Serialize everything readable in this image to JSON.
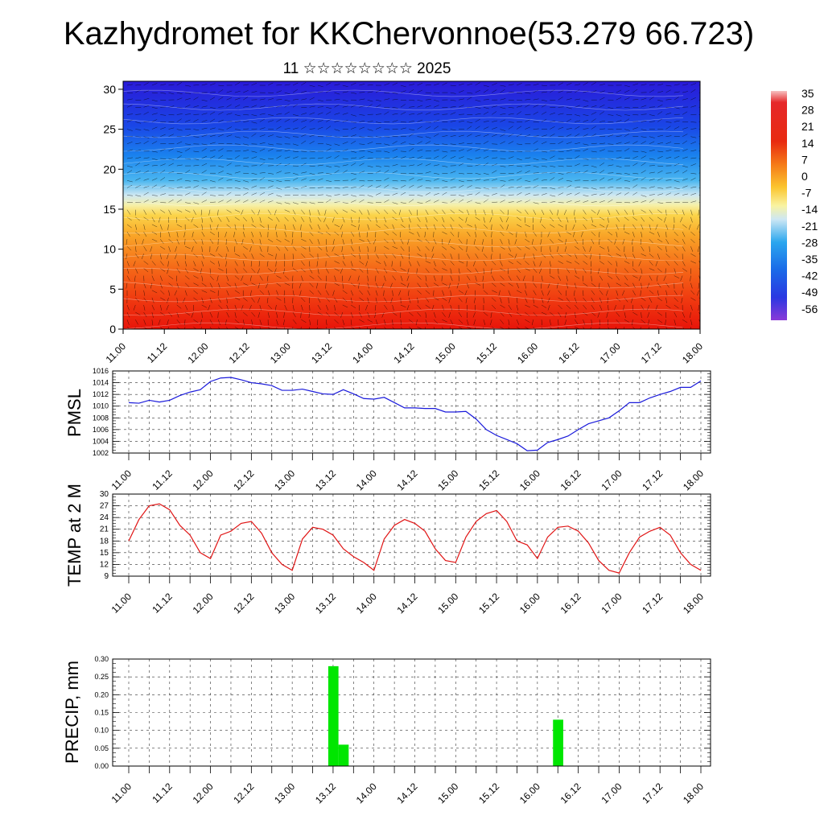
{
  "header": {
    "title": "Kazhydromet for KKChervonnoe(53.279 66.723)",
    "subtitle": "11 ☆☆☆☆☆☆☆☆ 2025"
  },
  "time_ticks": [
    "11.00",
    "11.12",
    "12.00",
    "12.12",
    "13.00",
    "13.12",
    "14.00",
    "14.12",
    "15.00",
    "15.12",
    "16.00",
    "16.12",
    "17.00",
    "17.12",
    "18.00"
  ],
  "colors": {
    "pmsl_line": "#1a1adb",
    "temp_line": "#e01414",
    "precip_bar": "#00e600",
    "grid": "#333333"
  },
  "chart_data": [
    {
      "type": "heatmap",
      "name": "cross-section",
      "ylabel": "",
      "ylim": [
        0,
        31
      ],
      "yticks": [
        0,
        5,
        10,
        15,
        20,
        25,
        30
      ],
      "colorbar": {
        "labels": [
          "35",
          "28",
          "21",
          "14",
          "7",
          "0",
          "-7",
          "-14",
          "-21",
          "-28",
          "-35",
          "-42",
          "-49",
          "-56"
        ]
      },
      "description_levels": {
        "surface_warm": 30,
        "freezing_level_km": 16,
        "top_cold": -56
      }
    },
    {
      "type": "line",
      "name": "pmsl",
      "ylabel": "PMSL",
      "ylim": [
        1002,
        1016
      ],
      "yticks": [
        1002,
        1004,
        1006,
        1008,
        1010,
        1012,
        1014,
        1016
      ],
      "x": [
        0,
        3,
        6,
        9,
        12,
        15,
        18,
        21,
        24,
        27,
        30,
        33,
        36,
        39,
        42,
        45,
        48,
        51,
        54,
        57,
        60,
        63,
        66,
        69,
        72,
        75,
        78,
        81,
        84,
        87,
        90,
        93,
        96,
        99,
        102,
        105,
        108,
        111,
        114,
        117,
        120,
        123,
        126,
        129,
        132,
        135,
        138,
        141,
        144,
        147,
        150,
        153,
        156,
        159,
        162,
        165,
        168
      ],
      "values": [
        1010.6,
        1010.5,
        1011.0,
        1010.7,
        1011.0,
        1011.8,
        1012.4,
        1012.8,
        1014.2,
        1014.8,
        1014.9,
        1014.5,
        1014.0,
        1013.8,
        1013.5,
        1012.7,
        1012.7,
        1012.9,
        1012.5,
        1012.1,
        1012.0,
        1012.8,
        1012.1,
        1011.3,
        1011.2,
        1011.5,
        1010.6,
        1009.7,
        1009.7,
        1009.6,
        1009.6,
        1009.0,
        1009.0,
        1009.1,
        1007.8,
        1006.0,
        1005.0,
        1004.3,
        1003.6,
        1002.4,
        1002.5,
        1003.8,
        1004.3,
        1004.9,
        1006.0,
        1007.0,
        1007.5,
        1008.0,
        1009.2,
        1010.6,
        1010.6,
        1011.4,
        1012.0,
        1012.5,
        1013.2,
        1013.2,
        1014.3
      ]
    },
    {
      "type": "line",
      "name": "temp2m",
      "ylabel": "TEMP at 2 M",
      "ylim": [
        9,
        30
      ],
      "yticks": [
        9,
        12,
        15,
        18,
        21,
        24,
        27,
        30
      ],
      "x": [
        0,
        3,
        6,
        9,
        12,
        15,
        18,
        21,
        24,
        27,
        30,
        33,
        36,
        39,
        42,
        45,
        48,
        51,
        54,
        57,
        60,
        63,
        66,
        69,
        72,
        75,
        78,
        81,
        84,
        87,
        90,
        93,
        96,
        99,
        102,
        105,
        108,
        111,
        114,
        117,
        120,
        123,
        126,
        129,
        132,
        135,
        138,
        141,
        144,
        147,
        150,
        153,
        156,
        159,
        162,
        165,
        168
      ],
      "values": [
        18,
        23.5,
        27,
        27.5,
        26,
        22,
        19.5,
        15,
        13.5,
        19.5,
        20.5,
        22.5,
        23,
        20,
        15,
        12,
        10.5,
        18.5,
        21.5,
        21,
        19.5,
        16,
        14,
        12.5,
        10.5,
        18.5,
        22,
        23.5,
        22.5,
        20.5,
        16,
        13,
        12.5,
        19,
        23,
        25,
        25.8,
        23,
        18,
        17,
        13.5,
        19,
        21.5,
        21.8,
        20.5,
        17.5,
        13,
        10.5,
        9.8,
        15,
        19,
        20.5,
        21.5,
        19.5,
        15,
        12,
        10.5
      ]
    },
    {
      "type": "bar",
      "name": "precip",
      "ylabel": "PRECIP, mm",
      "ylim": [
        0,
        0.3
      ],
      "yticks": [
        0.0,
        0.05,
        0.1,
        0.15,
        0.2,
        0.25,
        0.3
      ],
      "x": [
        60,
        63,
        126
      ],
      "values": [
        0.28,
        0.06,
        0.13
      ]
    }
  ]
}
